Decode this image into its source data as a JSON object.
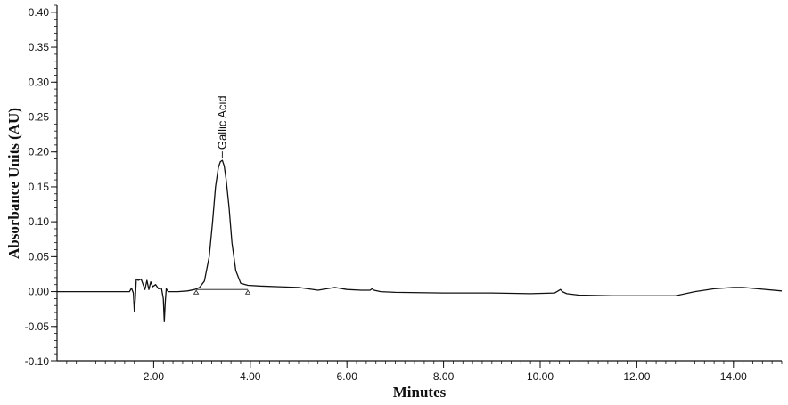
{
  "chart_data": {
    "type": "line",
    "title": "",
    "xlabel": "Minutes",
    "ylabel": "Absorbance Units (AU)",
    "xlim": [
      0,
      15
    ],
    "ylim": [
      -0.1,
      0.41
    ],
    "x_ticks": [
      2,
      4,
      6,
      8,
      10,
      12,
      14
    ],
    "x_tick_labels": [
      "2.00",
      "4.00",
      "6.00",
      "8.00",
      "10.00",
      "12.00",
      "14.00"
    ],
    "y_ticks": [
      -0.1,
      -0.05,
      0,
      0.05,
      0.1,
      0.15,
      0.2,
      0.25,
      0.3,
      0.35,
      0.4
    ],
    "y_tick_labels": [
      "-0.10",
      "-0.05",
      "0.00",
      "0.05",
      "0.10",
      "0.15",
      "0.20",
      "0.25",
      "0.30",
      "0.35",
      "0.40"
    ],
    "grid": false,
    "series": [
      {
        "color": "#111111",
        "x": [
          0.0,
          1.5,
          1.54,
          1.58,
          1.6,
          1.62,
          1.64,
          1.68,
          1.74,
          1.82,
          1.86,
          1.9,
          1.94,
          1.98,
          2.04,
          2.1,
          2.16,
          2.2,
          2.22,
          2.24,
          2.26,
          2.3,
          2.5,
          2.7,
          2.85,
          2.95,
          3.05,
          3.15,
          3.22,
          3.28,
          3.34,
          3.38,
          3.42,
          3.46,
          3.5,
          3.56,
          3.62,
          3.7,
          3.8,
          3.95,
          4.2,
          4.6,
          5.0,
          5.4,
          5.75,
          6.0,
          6.3,
          6.48,
          6.52,
          6.56,
          6.7,
          7.0,
          8.0,
          9.0,
          9.8,
          10.3,
          10.42,
          10.46,
          10.55,
          10.8,
          11.5,
          12.0,
          12.8,
          13.2,
          13.6,
          14.0,
          14.2,
          14.5,
          15.0
        ],
        "values": [
          0.0,
          0.0,
          0.005,
          -0.002,
          -0.028,
          -0.01,
          0.018,
          0.016,
          0.018,
          0.003,
          0.016,
          0.003,
          0.014,
          0.007,
          0.01,
          0.004,
          0.005,
          -0.01,
          -0.043,
          -0.015,
          0.004,
          0.0,
          0.0,
          0.001,
          0.003,
          0.006,
          0.015,
          0.05,
          0.1,
          0.15,
          0.178,
          0.186,
          0.188,
          0.18,
          0.16,
          0.12,
          0.07,
          0.03,
          0.012,
          0.009,
          0.008,
          0.007,
          0.006,
          0.002,
          0.006,
          0.003,
          0.002,
          0.002,
          0.004,
          0.002,
          0.0,
          -0.001,
          -0.002,
          -0.002,
          -0.003,
          -0.002,
          0.003,
          0.0,
          -0.003,
          -0.005,
          -0.006,
          -0.006,
          -0.006,
          0.0,
          0.004,
          0.006,
          0.006,
          0.004,
          0.001
        ]
      }
    ],
    "annotations": [
      {
        "text": "Gallic Acid",
        "x": 3.42,
        "y": 0.188
      }
    ],
    "baseline_markers": {
      "x": [
        2.88,
        3.95
      ],
      "y": 0.003
    }
  }
}
